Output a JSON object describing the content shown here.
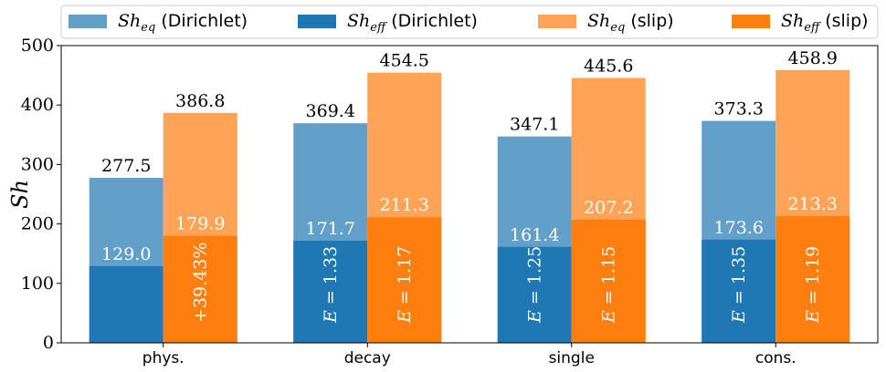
{
  "chart_data": {
    "type": "bar",
    "categories": [
      "phys.",
      "decay",
      "single",
      "cons."
    ],
    "ylabel": "Sh",
    "ylim": [
      0,
      500
    ],
    "yticks": [
      0,
      100,
      200,
      300,
      400,
      500
    ],
    "legend_position": "top",
    "legend": [
      {
        "base": "Sh",
        "sub": "eq",
        "suffix": " (Dirichlet)",
        "color": "#62a0ca"
      },
      {
        "base": "Sh",
        "sub": "eff",
        "suffix": " (Dirichlet)",
        "color": "#1f77b4"
      },
      {
        "base": "Sh",
        "sub": "eq",
        "suffix": " (slip)",
        "color": "#ffa456"
      },
      {
        "base": "Sh",
        "sub": "eff",
        "suffix": " (slip)",
        "color": "#ff7f0e"
      }
    ],
    "series": [
      {
        "group": "Dirichlet",
        "kind": "eq",
        "values": [
          277.5,
          369.4,
          347.1,
          373.3
        ],
        "labels": [
          "277.5",
          "369.4",
          "347.1",
          "373.3"
        ]
      },
      {
        "group": "Dirichlet",
        "kind": "eff",
        "values": [
          129.0,
          171.7,
          161.4,
          173.6
        ],
        "labels": [
          "129.0",
          "171.7",
          "161.4",
          "173.6"
        ]
      },
      {
        "group": "slip",
        "kind": "eq",
        "values": [
          386.8,
          454.5,
          445.6,
          458.9
        ],
        "labels": [
          "386.8",
          "454.5",
          "445.6",
          "458.9"
        ]
      },
      {
        "group": "slip",
        "kind": "eff",
        "values": [
          179.9,
          211.3,
          207.2,
          213.3
        ],
        "labels": [
          "179.9",
          "211.3",
          "207.2",
          "213.3"
        ]
      }
    ],
    "bar_annotations": [
      {
        "category": "phys.",
        "group": "slip",
        "text": "+39.43%"
      },
      {
        "category": "decay",
        "group": "Dirichlet",
        "prefix": "E",
        "text": " = 1.33"
      },
      {
        "category": "decay",
        "group": "slip",
        "prefix": "E",
        "text": " = 1.17"
      },
      {
        "category": "single",
        "group": "Dirichlet",
        "prefix": "E",
        "text": " = 1.25"
      },
      {
        "category": "single",
        "group": "slip",
        "prefix": "E",
        "text": " = 1.15"
      },
      {
        "category": "cons.",
        "group": "Dirichlet",
        "prefix": "E",
        "text": " = 1.35"
      },
      {
        "category": "cons.",
        "group": "slip",
        "prefix": "E",
        "text": " = 1.19"
      }
    ],
    "colors": {
      "dirichlet_eq": "#62a0ca",
      "dirichlet_eff": "#1f77b4",
      "slip_eq": "#ffa456",
      "slip_eff": "#ff7f0e"
    }
  }
}
